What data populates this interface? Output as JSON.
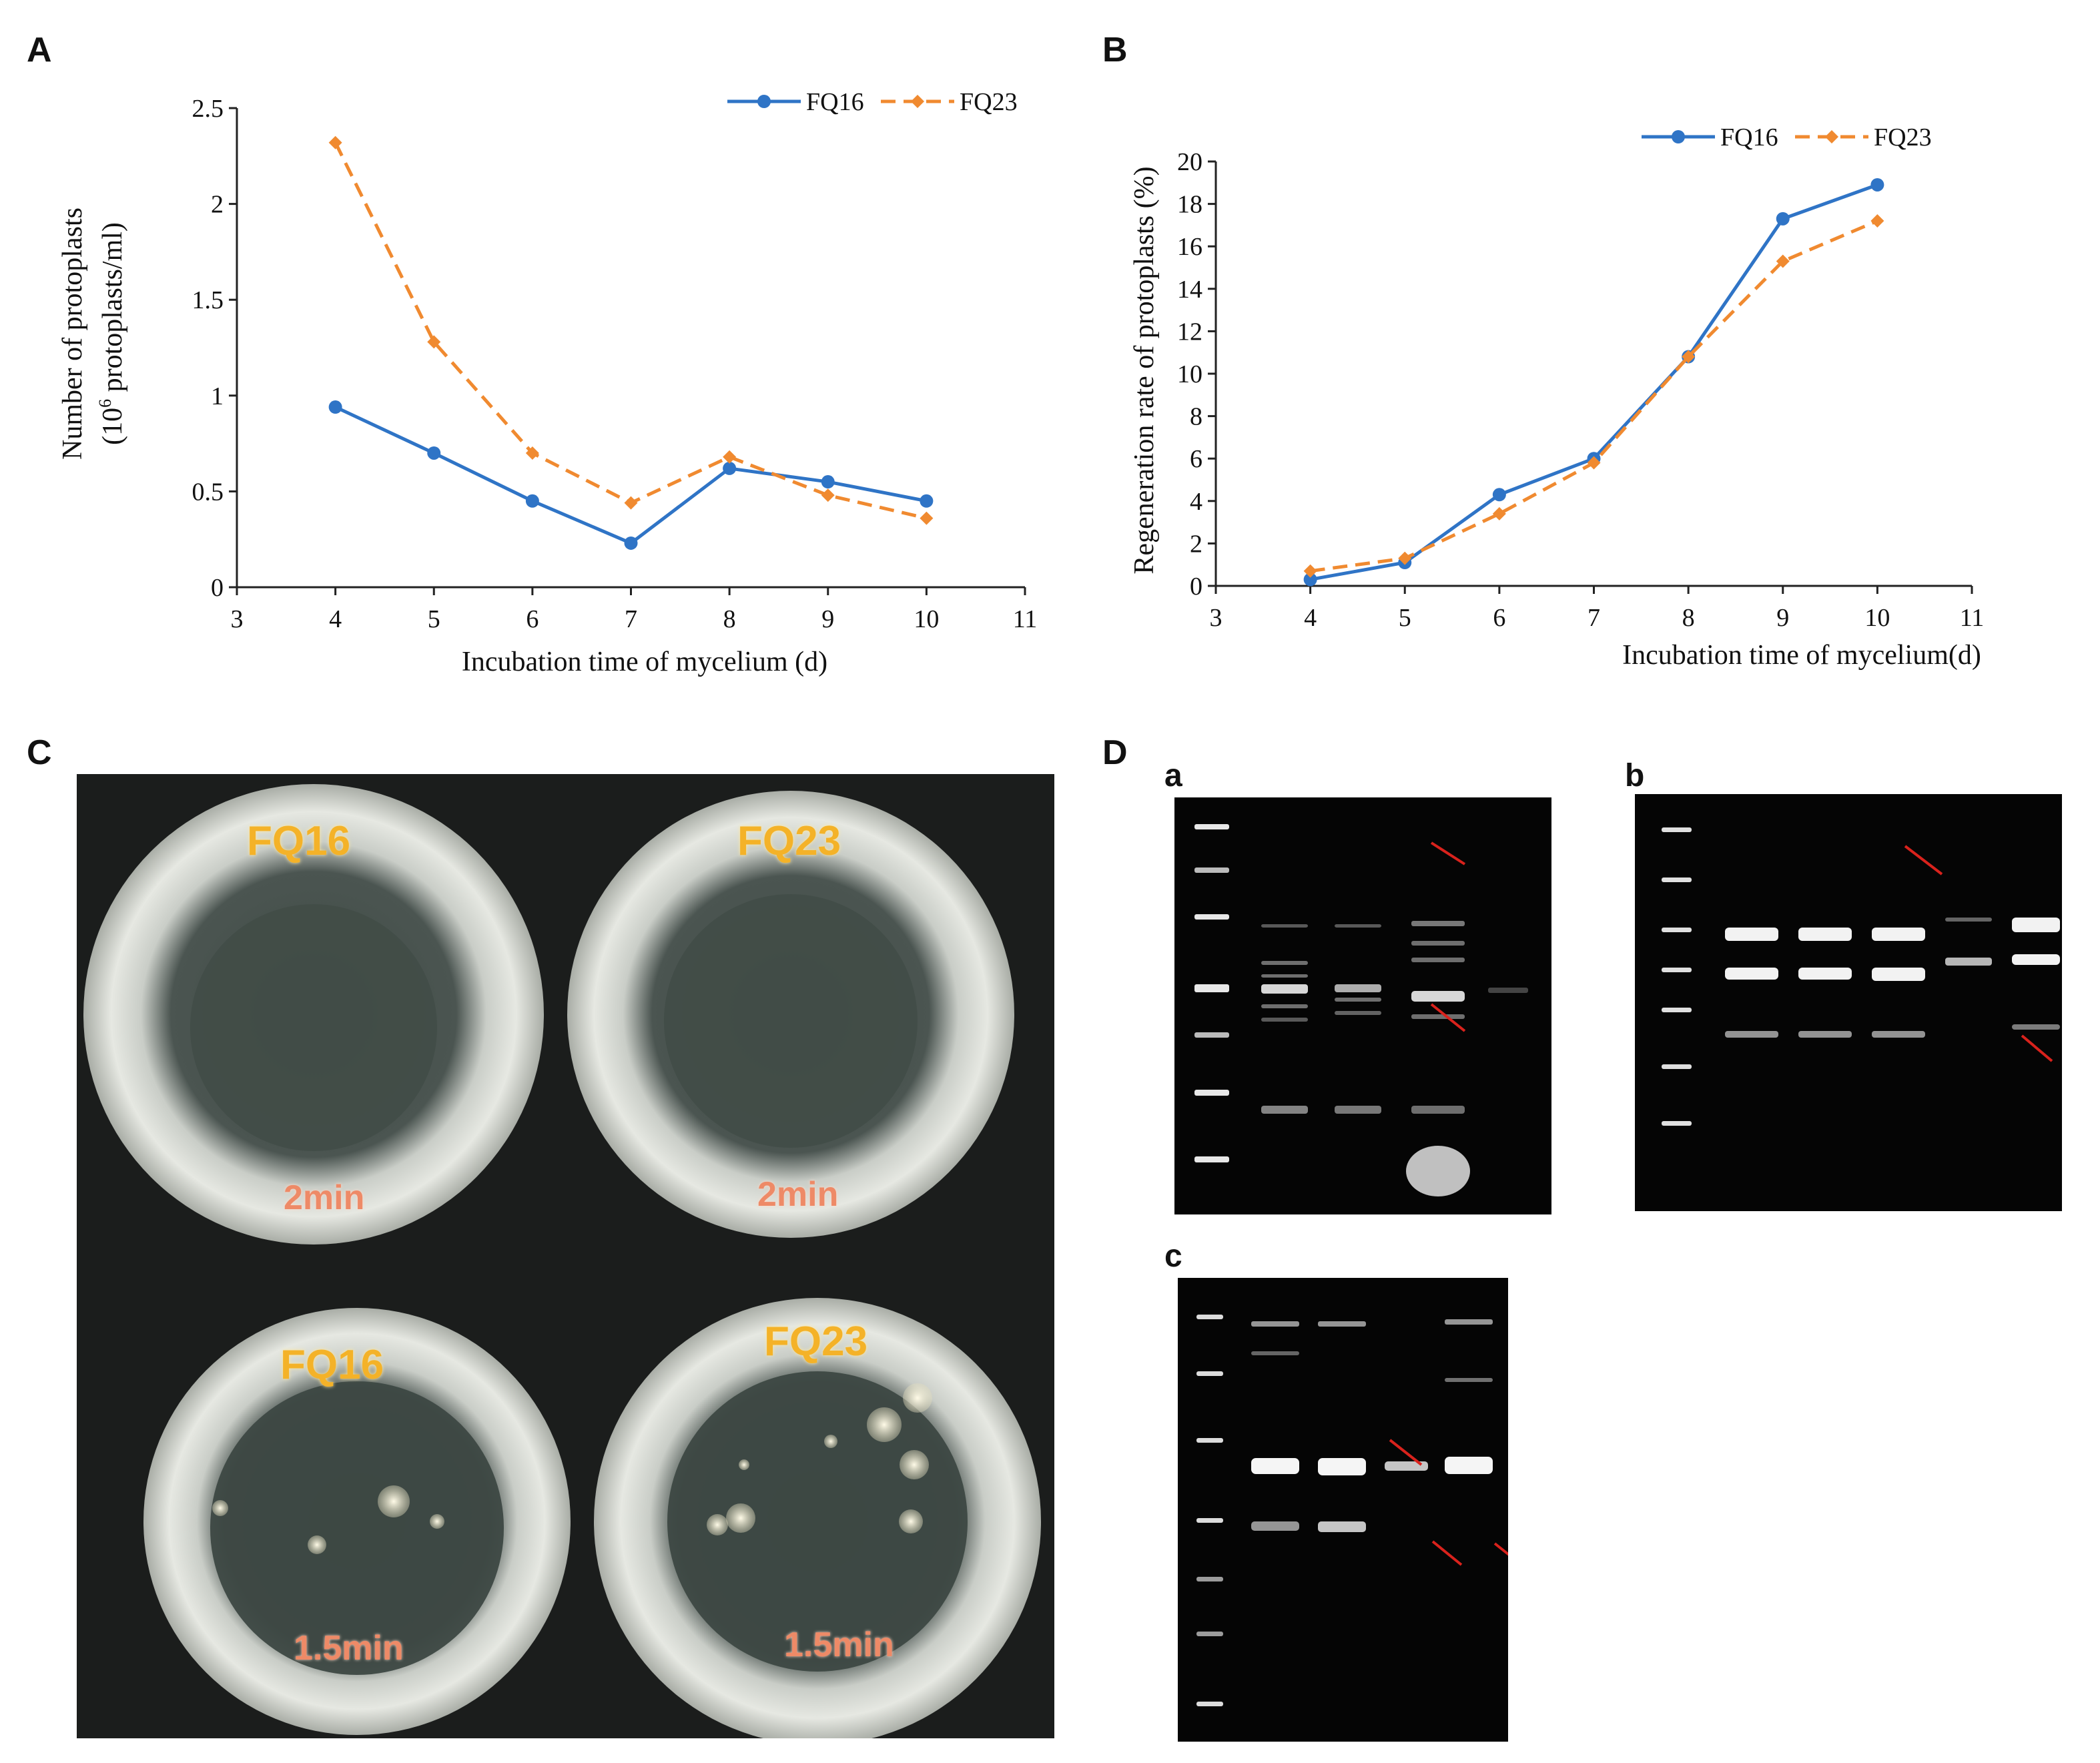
{
  "panels": {
    "A": "A",
    "B": "B",
    "C": "C",
    "D": "D",
    "Da": "a",
    "Db": "b",
    "Dc": "c"
  },
  "chart_data": [
    {
      "panel": "A",
      "type": "line",
      "x": [
        4,
        5,
        6,
        7,
        8,
        9,
        10
      ],
      "series": [
        {
          "name": "FQ16",
          "values": [
            0.94,
            0.7,
            0.45,
            0.23,
            0.62,
            0.55,
            0.45
          ],
          "color": "#2f74c6",
          "style": "solid",
          "marker": "circle"
        },
        {
          "name": "FQ23",
          "values": [
            2.32,
            1.28,
            0.7,
            0.44,
            0.68,
            0.48,
            0.36
          ],
          "color": "#f08a30",
          "style": "dashed",
          "marker": "diamond"
        }
      ],
      "xlabel": "Incubation time of mycelium (d)",
      "ylabel_line1": "Number of protoplasts",
      "ylabel_line2_pre": "(10",
      "ylabel_line2_sup": "6",
      "ylabel_line2_post": " protoplasts/ml)",
      "xlim": [
        3,
        11
      ],
      "ylim": [
        0,
        2.5
      ],
      "xticks": [
        "3",
        "4",
        "5",
        "6",
        "7",
        "8",
        "9",
        "10",
        "11"
      ],
      "yticks": [
        "0",
        "0.5",
        "1",
        "1.5",
        "2",
        "2.5"
      ],
      "legend": "top-right",
      "grid": false
    },
    {
      "panel": "B",
      "type": "line",
      "x": [
        4,
        5,
        6,
        7,
        8,
        9,
        10
      ],
      "series": [
        {
          "name": "FQ16",
          "values": [
            0.3,
            1.1,
            4.3,
            6.0,
            10.8,
            17.3,
            18.9
          ],
          "color": "#2f74c6",
          "style": "solid",
          "marker": "circle"
        },
        {
          "name": "FQ23",
          "values": [
            0.7,
            1.3,
            3.4,
            5.8,
            10.8,
            15.3,
            17.2
          ],
          "color": "#f08a30",
          "style": "dashed",
          "marker": "diamond"
        }
      ],
      "xlabel": "Incubation time of mycelium(d)",
      "ylabel": "Regeneration rate of protoplasts (%)",
      "xlim": [
        3,
        11
      ],
      "ylim": [
        0,
        20
      ],
      "xticks": [
        "3",
        "4",
        "5",
        "6",
        "7",
        "8",
        "9",
        "10",
        "11"
      ],
      "yticks": [
        "0",
        "2",
        "4",
        "6",
        "8",
        "10",
        "12",
        "14",
        "16",
        "18",
        "20"
      ],
      "legend": "top-right",
      "grid": false
    }
  ],
  "photo_c": {
    "dish_labels": [
      "FQ16",
      "FQ23",
      "FQ16",
      "FQ23"
    ],
    "time_labels": [
      "2min",
      "2min",
      "1.5min",
      "1.5min"
    ]
  }
}
